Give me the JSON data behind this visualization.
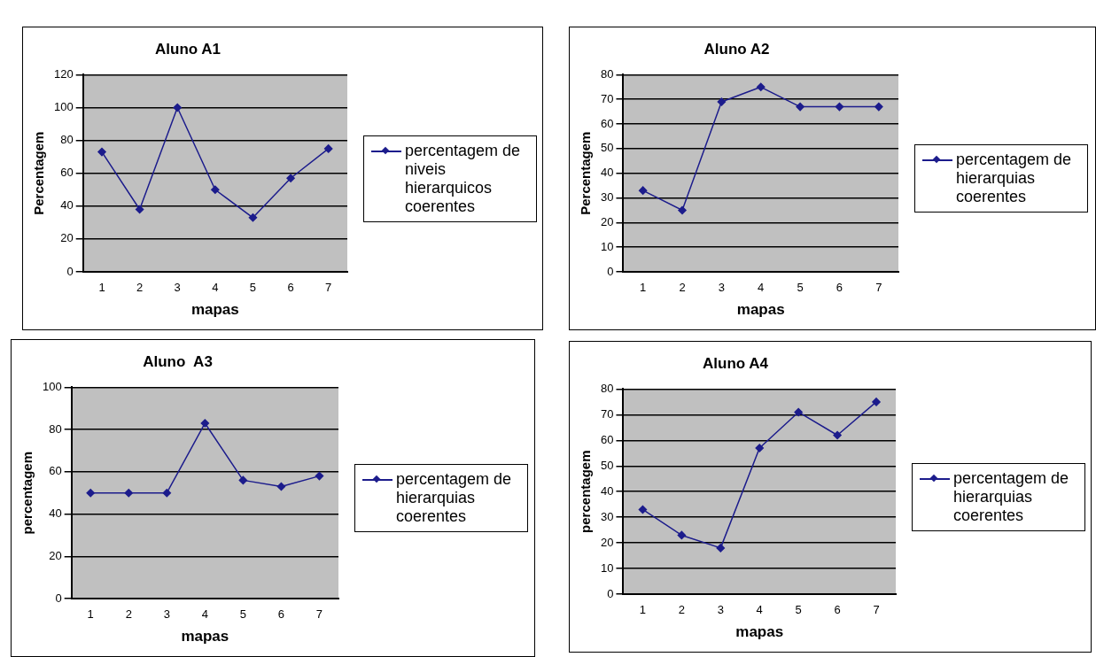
{
  "chart_data": [
    {
      "type": "line",
      "title": "Aluno A1",
      "xlabel": "mapas",
      "ylabel": "Percentagem",
      "categories": [
        "1",
        "2",
        "3",
        "4",
        "5",
        "6",
        "7"
      ],
      "series": [
        {
          "name": "percentagem de niveis hierarquicos coerentes",
          "color": "#1c1c8c",
          "values": [
            73,
            38,
            100,
            50,
            33,
            57,
            75
          ]
        }
      ],
      "ylim": [
        0,
        120
      ],
      "yticks": [
        0,
        20,
        40,
        60,
        80,
        100,
        120
      ],
      "grid": "y",
      "legend": "right",
      "marker": "diamond",
      "line_style": "solid"
    },
    {
      "type": "line",
      "title": "Aluno A2",
      "xlabel": "mapas",
      "ylabel": "Percentagem",
      "categories": [
        "1",
        "2",
        "3",
        "4",
        "5",
        "6",
        "7"
      ],
      "series": [
        {
          "name": "percentagem de hierarquias coerentes",
          "color": "#1c1c8c",
          "values": [
            33,
            25,
            69,
            75,
            67,
            67,
            67
          ]
        }
      ],
      "ylim": [
        0,
        80
      ],
      "yticks": [
        0,
        10,
        20,
        30,
        40,
        50,
        60,
        70,
        80
      ],
      "grid": "y",
      "legend": "right",
      "marker": "diamond",
      "line_style": "solid"
    },
    {
      "type": "line",
      "title": "Aluno  A3",
      "xlabel": "mapas",
      "ylabel": "percentagem",
      "categories": [
        "1",
        "2",
        "3",
        "4",
        "5",
        "6",
        "7"
      ],
      "series": [
        {
          "name": "percentagem de hierarquias coerentes",
          "color": "#1c1c8c",
          "values": [
            50,
            50,
            50,
            83,
            56,
            53,
            58
          ]
        }
      ],
      "ylim": [
        0,
        100
      ],
      "yticks": [
        0,
        20,
        40,
        60,
        80,
        100
      ],
      "grid": "y",
      "legend": "right",
      "marker": "diamond",
      "line_style": "solid"
    },
    {
      "type": "line",
      "title": "Aluno A4",
      "xlabel": "mapas",
      "ylabel": "percentagem",
      "categories": [
        "1",
        "2",
        "3",
        "4",
        "5",
        "6",
        "7"
      ],
      "series": [
        {
          "name": "percentagem de hierarquias coerentes",
          "color": "#1c1c8c",
          "values": [
            33,
            23,
            18,
            57,
            71,
            62,
            75
          ]
        }
      ],
      "ylim": [
        0,
        80
      ],
      "yticks": [
        0,
        10,
        20,
        30,
        40,
        50,
        60,
        70,
        80
      ],
      "grid": "y",
      "legend": "right",
      "marker": "diamond",
      "line_style": "solid"
    }
  ]
}
